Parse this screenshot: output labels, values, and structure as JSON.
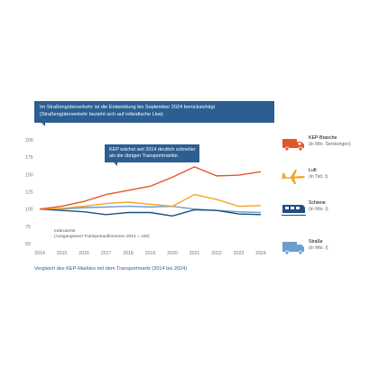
{
  "banner_top": {
    "line1": "Im Straßengüterverkehr ist die Entwicklung bis September 2024 berücksichtigt",
    "line2": "(Straßengüterverkehr bezieht sich auf inländische Lkw)."
  },
  "banner_chart": {
    "line1": "KEP wächst seit 2014 deutlich schneller",
    "line2": "als die übrigen Transportmärkte."
  },
  "index_note": {
    "line1": "Indexwerte",
    "line2": "(Ausgangswert Transportaufkommen 2014 = 100)"
  },
  "caption": "Vergleich des KEP-Marktes mit dem Transportmarkt (2014 bis 2024)",
  "legend": [
    {
      "name": "KEP-Branche",
      "sub": "(in Mio. Sendungen)",
      "color": "#e0572b",
      "icon": "delivery-van-icon"
    },
    {
      "name": "Luft",
      "sub": "(in Tsd. t)",
      "color": "#f0a623",
      "icon": "airplane-icon"
    },
    {
      "name": "Schiene",
      "sub": "(in Mio. t)",
      "color": "#1f4f82",
      "icon": "train-icon"
    },
    {
      "name": "Straße",
      "sub": "(in Mio. t)",
      "color": "#6b9dcf",
      "icon": "truck-icon"
    }
  ],
  "chart_data": {
    "type": "line",
    "x": [
      "2014",
      "2015",
      "2016",
      "2017",
      "2018",
      "2019",
      "2020",
      "2021",
      "2022",
      "2023",
      "2024"
    ],
    "ylim": [
      50,
      200
    ],
    "yticks": [
      50,
      75,
      100,
      125,
      150,
      175,
      200
    ],
    "grid": false,
    "legend_position": "right",
    "series": [
      {
        "name": "KEP-Branche",
        "color": "#e0572b",
        "values": [
          100,
          104,
          111,
          121,
          127,
          133,
          146,
          161,
          148,
          149,
          154
        ]
      },
      {
        "name": "Luft",
        "color": "#f0a623",
        "values": [
          100,
          101,
          104,
          108,
          110,
          107,
          104,
          121,
          114,
          104,
          105
        ]
      },
      {
        "name": "Schiene",
        "color": "#1f4f82",
        "values": [
          100,
          98,
          96,
          92,
          95,
          95,
          90,
          99,
          98,
          93,
          92
        ]
      },
      {
        "name": "Straße",
        "color": "#6b9dcf",
        "values": [
          100,
          100,
          102,
          103,
          104,
          103,
          104,
          100,
          98,
          96,
          95
        ]
      }
    ]
  }
}
